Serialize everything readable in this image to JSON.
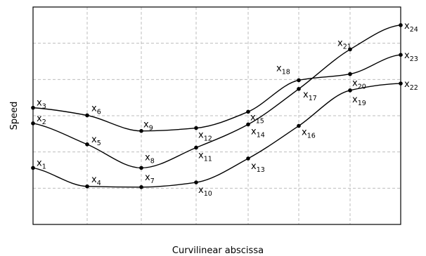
{
  "chart_data": {
    "type": "line",
    "xlabel": "Curvilinear abscissa",
    "ylabel": "Speed",
    "grid": true,
    "x_columns": 8,
    "points": [
      {
        "name": "x",
        "sub": "1",
        "col": 0,
        "y": 3.06
      },
      {
        "name": "x",
        "sub": "2",
        "col": 0,
        "y": 4.29
      },
      {
        "name": "x",
        "sub": "3",
        "col": 0,
        "y": 4.72
      },
      {
        "name": "x",
        "sub": "4",
        "col": 1,
        "y": 2.55
      },
      {
        "name": "x",
        "sub": "5",
        "col": 1,
        "y": 3.71
      },
      {
        "name": "x",
        "sub": "6",
        "col": 1,
        "y": 4.51
      },
      {
        "name": "x",
        "sub": "7",
        "col": 2,
        "y": 2.53
      },
      {
        "name": "x",
        "sub": "8",
        "col": 2,
        "y": 3.06
      },
      {
        "name": "x",
        "sub": "9",
        "col": 2,
        "y": 4.08
      },
      {
        "name": "x",
        "sub": "10",
        "col": 3,
        "y": 2.66
      },
      {
        "name": "x",
        "sub": "11",
        "col": 3,
        "y": 3.62
      },
      {
        "name": "x",
        "sub": "12",
        "col": 3,
        "y": 4.16
      },
      {
        "name": "x",
        "sub": "13",
        "col": 4,
        "y": 3.32
      },
      {
        "name": "x",
        "sub": "14",
        "col": 4,
        "y": 4.26
      },
      {
        "name": "x",
        "sub": "15",
        "col": 4,
        "y": 4.61
      },
      {
        "name": "x",
        "sub": "16",
        "col": 5,
        "y": 4.22
      },
      {
        "name": "x",
        "sub": "17",
        "col": 5,
        "y": 5.24
      },
      {
        "name": "x",
        "sub": "18",
        "col": 5,
        "y": 5.48
      },
      {
        "name": "x",
        "sub": "19",
        "col": 6,
        "y": 5.2
      },
      {
        "name": "x",
        "sub": "20",
        "col": 6,
        "y": 5.65
      },
      {
        "name": "x",
        "sub": "21",
        "col": 6,
        "y": 6.33
      },
      {
        "name": "x",
        "sub": "22",
        "col": 7,
        "y": 5.39
      },
      {
        "name": "x",
        "sub": "23",
        "col": 7,
        "y": 6.18
      },
      {
        "name": "x",
        "sub": "24",
        "col": 7,
        "y": 7.0
      }
    ],
    "series": [
      {
        "points": [
          "1",
          "4",
          "7",
          "10",
          "13",
          "16",
          "19",
          "22"
        ]
      },
      {
        "points": [
          "2",
          "5",
          "8",
          "11",
          "14",
          "17",
          "21",
          "24"
        ]
      },
      {
        "points": [
          "3",
          "6",
          "9",
          "12",
          "15",
          "18",
          "20",
          "23"
        ]
      }
    ]
  }
}
